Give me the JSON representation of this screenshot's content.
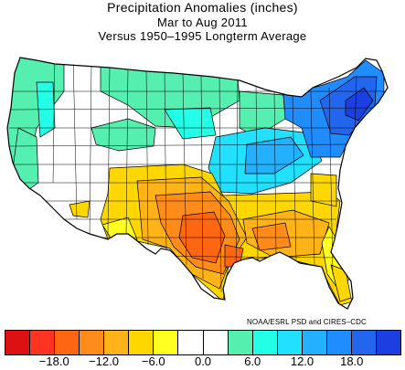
{
  "title": {
    "line1": "Precipitation Anomalies (inches)",
    "line2": "Mar to Aug 2011",
    "line3": "Versus 1950–1995 Longterm Average"
  },
  "credit": "NOAA/ESRL PSD and CIRES–CDC",
  "legend": {
    "colors": [
      "#dd1111",
      "#ff3322",
      "#ff6611",
      "#ff8c1a",
      "#ffb319",
      "#ffd700",
      "#ffff22",
      "#ffffff",
      "#ffffff",
      "#55efb0",
      "#22ffe6",
      "#22e0ff",
      "#22b0ff",
      "#1f8cff",
      "#2266ee",
      "#1b3fe0"
    ],
    "tick_labels": [
      "−18.0",
      "−12.0",
      "−6.0",
      "0.0",
      "6.0",
      "12.0",
      "18.0"
    ],
    "tick_values": [
      -18,
      -12,
      -6,
      0,
      6,
      12,
      18
    ]
  }
}
